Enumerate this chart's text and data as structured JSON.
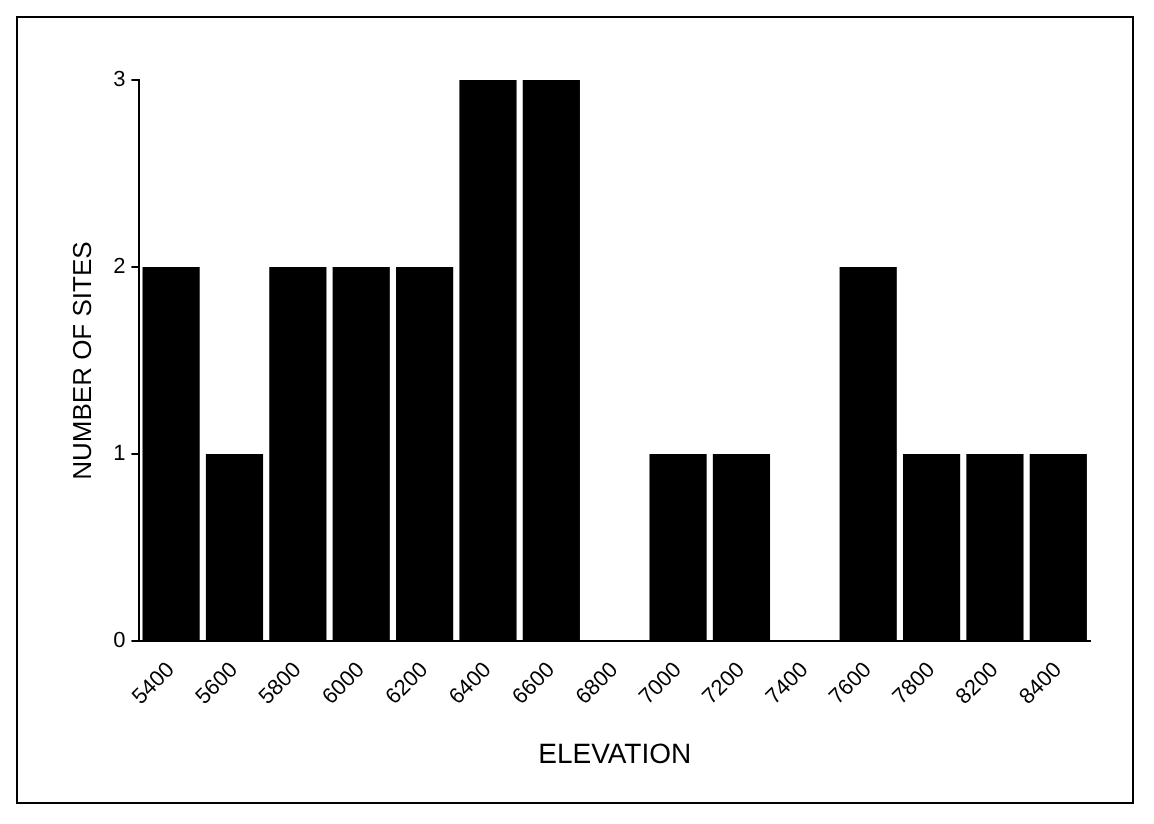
{
  "chart_data": {
    "type": "bar",
    "xlabel": "ELEVATION",
    "ylabel": "NUMBER OF SITES",
    "categories": [
      "5400",
      "5600",
      "5800",
      "6000",
      "6200",
      "6400",
      "6600",
      "6800",
      "7000",
      "7200",
      "7400",
      "7600",
      "7800",
      "8200",
      "8400"
    ],
    "values": [
      2,
      1,
      2,
      2,
      2,
      3,
      3,
      0,
      1,
      1,
      0,
      2,
      1,
      1,
      1
    ],
    "color": "#000000",
    "ylim": [
      0,
      3
    ],
    "yticks": [
      0,
      1,
      2,
      3
    ],
    "grid": false,
    "legend": false
  }
}
